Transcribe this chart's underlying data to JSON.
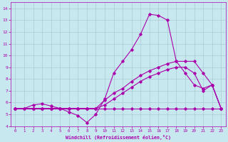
{
  "xlabel": "Windchill (Refroidissement éolien,°C)",
  "xlim": [
    -0.5,
    23.5
  ],
  "ylim": [
    4,
    14.5
  ],
  "xticks": [
    0,
    1,
    2,
    3,
    4,
    5,
    6,
    7,
    8,
    9,
    10,
    11,
    12,
    13,
    14,
    15,
    16,
    17,
    18,
    19,
    20,
    21,
    22,
    23
  ],
  "yticks": [
    4,
    5,
    6,
    7,
    8,
    9,
    10,
    11,
    12,
    13,
    14
  ],
  "bg_color": "#c8e8f0",
  "grid_color": "#aaccd8",
  "line_color": "#aa00aa",
  "lines": [
    {
      "x": [
        0,
        1,
        2,
        3,
        4,
        5,
        6,
        7,
        8,
        9,
        10,
        11,
        12,
        13,
        14,
        15,
        16,
        17,
        18,
        19,
        20,
        21,
        22,
        23
      ],
      "y": [
        5.5,
        5.5,
        5.5,
        5.5,
        5.5,
        5.5,
        5.5,
        5.5,
        5.5,
        5.5,
        5.5,
        5.5,
        5.5,
        5.5,
        5.5,
        5.5,
        5.5,
        5.5,
        5.5,
        5.5,
        5.5,
        5.5,
        5.5,
        5.5
      ]
    },
    {
      "x": [
        0,
        1,
        2,
        3,
        4,
        5,
        6,
        7,
        8,
        9,
        10,
        11,
        12,
        13,
        14,
        15,
        16,
        17,
        18,
        19,
        20,
        21,
        22,
        23
      ],
      "y": [
        5.5,
        5.5,
        5.8,
        5.9,
        5.7,
        5.5,
        5.2,
        4.9,
        4.3,
        5.0,
        6.3,
        8.5,
        9.5,
        10.5,
        11.8,
        13.5,
        13.4,
        13.0,
        9.5,
        8.5,
        7.5,
        7.2,
        7.5,
        5.5
      ]
    },
    {
      "x": [
        0,
        2,
        3,
        4,
        5,
        6,
        7,
        8,
        9,
        10,
        11,
        12,
        13,
        14,
        15,
        16,
        17,
        18,
        19,
        20,
        21,
        22,
        23
      ],
      "y": [
        5.5,
        5.5,
        5.5,
        5.5,
        5.5,
        5.5,
        5.5,
        5.5,
        5.5,
        6.2,
        6.8,
        7.2,
        7.8,
        8.3,
        8.7,
        9.0,
        9.3,
        9.5,
        9.5,
        9.5,
        8.5,
        7.5,
        5.5
      ]
    },
    {
      "x": [
        0,
        2,
        3,
        4,
        5,
        6,
        7,
        8,
        9,
        10,
        11,
        12,
        13,
        14,
        15,
        16,
        17,
        18,
        19,
        20,
        21,
        22,
        23
      ],
      "y": [
        5.5,
        5.5,
        5.5,
        5.5,
        5.5,
        5.5,
        5.5,
        5.5,
        5.5,
        5.8,
        6.3,
        6.8,
        7.3,
        7.8,
        8.2,
        8.5,
        8.8,
        9.0,
        9.0,
        8.5,
        7.0,
        7.5,
        5.5
      ]
    }
  ]
}
